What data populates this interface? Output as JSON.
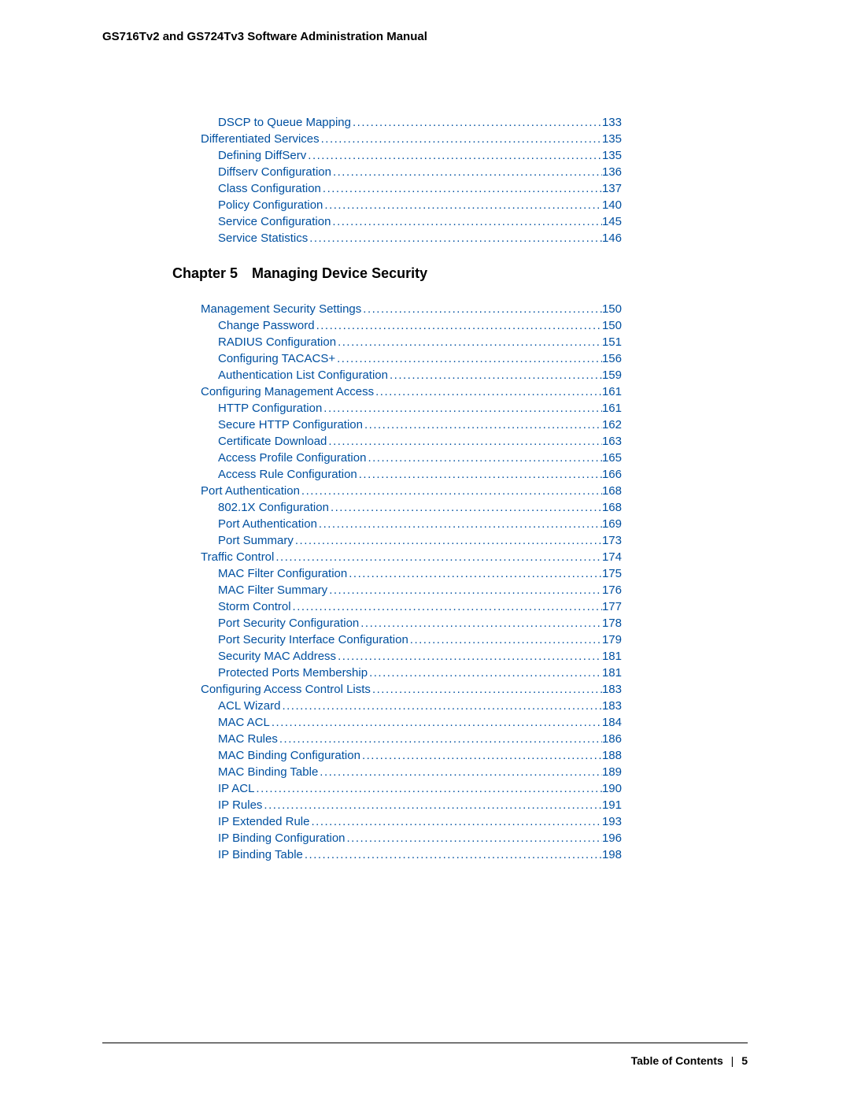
{
  "header": {
    "title": "GS716Tv2 and GS724Tv3 Software Administration Manual"
  },
  "colors": {
    "link": "#0050a0",
    "text": "#000000",
    "background": "#ffffff"
  },
  "toc_top": [
    {
      "label": "DSCP to Queue Mapping",
      "page": "133",
      "level": 2
    },
    {
      "label": "Differentiated Services",
      "page": "135",
      "level": 1
    },
    {
      "label": "Defining DiffServ",
      "page": "135",
      "level": 2
    },
    {
      "label": "Diffserv Configuration",
      "page": "136",
      "level": 2
    },
    {
      "label": "Class Configuration",
      "page": "137",
      "level": 2
    },
    {
      "label": "Policy Configuration",
      "page": "140",
      "level": 2
    },
    {
      "label": "Service Configuration",
      "page": "145",
      "level": 2
    },
    {
      "label": "Service Statistics",
      "page": "146",
      "level": 2
    }
  ],
  "chapter": {
    "number": "Chapter 5",
    "title": "Managing Device Security"
  },
  "toc_chapter": [
    {
      "label": "Management Security Settings",
      "page": "150",
      "level": 1
    },
    {
      "label": "Change Password",
      "page": "150",
      "level": 2
    },
    {
      "label": "RADIUS Configuration",
      "page": "151",
      "level": 2
    },
    {
      "label": "Configuring TACACS+",
      "page": "156",
      "level": 2
    },
    {
      "label": "Authentication List Configuration",
      "page": "159",
      "level": 2
    },
    {
      "label": "Configuring Management Access",
      "page": "161",
      "level": 1
    },
    {
      "label": "HTTP Configuration",
      "page": "161",
      "level": 2
    },
    {
      "label": "Secure HTTP Configuration",
      "page": "162",
      "level": 2
    },
    {
      "label": "Certificate Download",
      "page": "163",
      "level": 2
    },
    {
      "label": "Access Profile Configuration",
      "page": "165",
      "level": 2
    },
    {
      "label": "Access Rule Configuration",
      "page": "166",
      "level": 2
    },
    {
      "label": "Port Authentication",
      "page": "168",
      "level": 1
    },
    {
      "label": "802.1X Configuration",
      "page": "168",
      "level": 2
    },
    {
      "label": "Port Authentication",
      "page": "169",
      "level": 2
    },
    {
      "label": "Port Summary",
      "page": "173",
      "level": 2
    },
    {
      "label": "Traffic Control",
      "page": "174",
      "level": 1
    },
    {
      "label": "MAC Filter Configuration",
      "page": "175",
      "level": 2
    },
    {
      "label": "MAC Filter Summary",
      "page": "176",
      "level": 2
    },
    {
      "label": "Storm Control",
      "page": "177",
      "level": 2
    },
    {
      "label": "Port Security Configuration",
      "page": "178",
      "level": 2
    },
    {
      "label": "Port Security Interface Configuration",
      "page": "179",
      "level": 2
    },
    {
      "label": "Security MAC Address",
      "page": "181",
      "level": 2
    },
    {
      "label": "Protected Ports Membership",
      "page": "181",
      "level": 2
    },
    {
      "label": "Configuring Access Control Lists",
      "page": "183",
      "level": 1
    },
    {
      "label": "ACL Wizard",
      "page": "183",
      "level": 2
    },
    {
      "label": "MAC ACL",
      "page": "184",
      "level": 2
    },
    {
      "label": "MAC Rules",
      "page": "186",
      "level": 2
    },
    {
      "label": "MAC Binding Configuration",
      "page": "188",
      "level": 2
    },
    {
      "label": "MAC Binding Table",
      "page": "189",
      "level": 2
    },
    {
      "label": "IP ACL",
      "page": "190",
      "level": 2
    },
    {
      "label": "IP Rules",
      "page": "191",
      "level": 2
    },
    {
      "label": "IP Extended Rule",
      "page": "193",
      "level": 2
    },
    {
      "label": "IP Binding Configuration",
      "page": "196",
      "level": 2
    },
    {
      "label": "IP Binding Table",
      "page": "198",
      "level": 2
    }
  ],
  "footer": {
    "label": "Table of Contents",
    "separator": "|",
    "page": "5"
  }
}
